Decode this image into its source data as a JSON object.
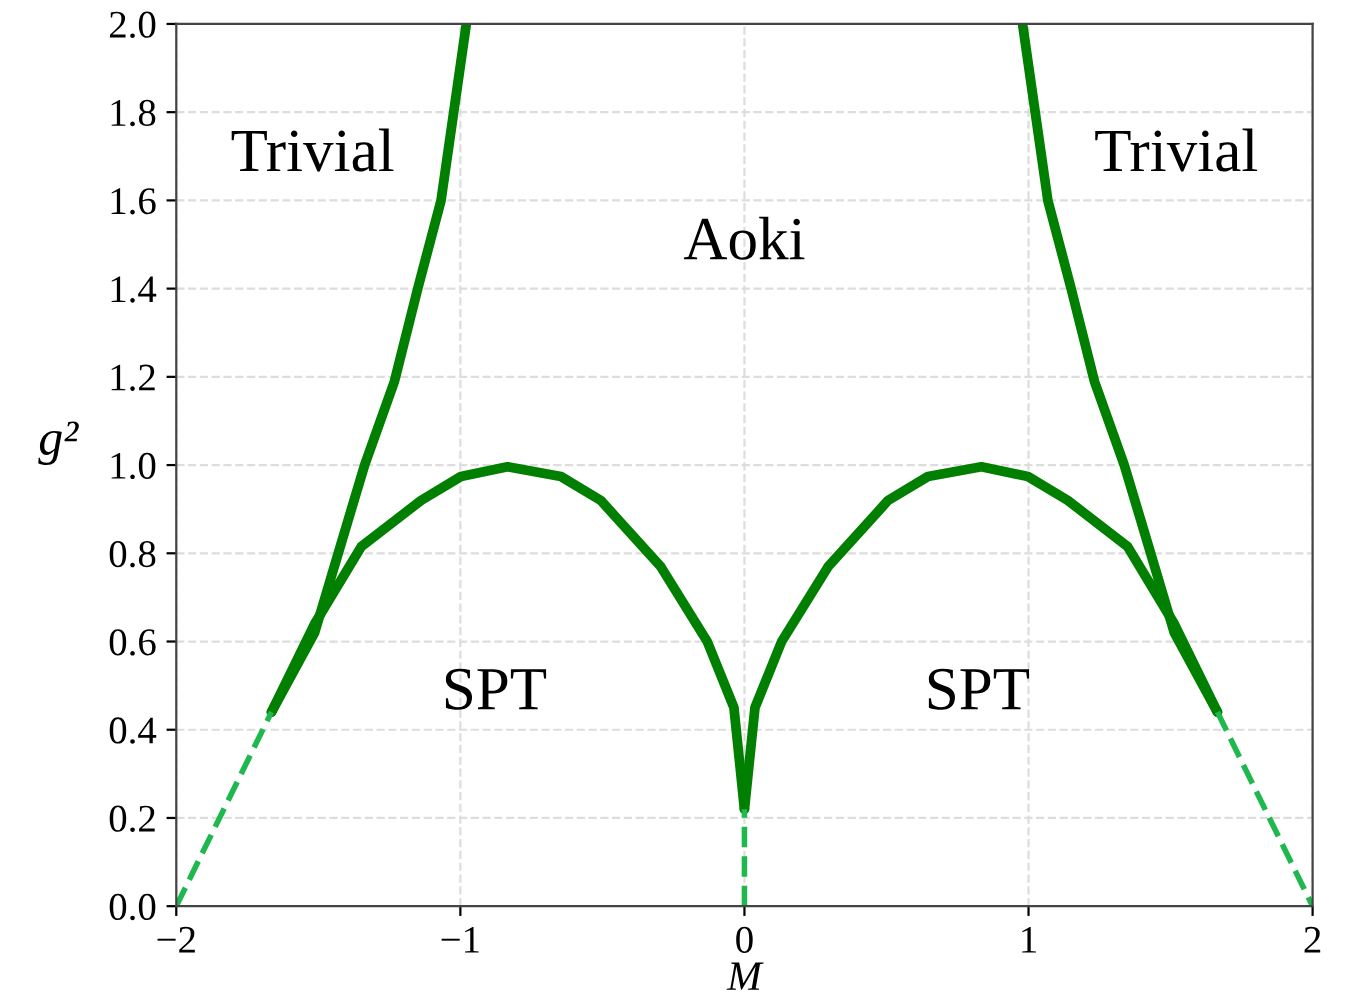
{
  "chart_data": {
    "type": "line",
    "xlabel": "M",
    "ylabel": "g²",
    "xlim": [
      -2,
      2
    ],
    "ylim": [
      0.0,
      2.0
    ],
    "xticks": [
      -2,
      -1,
      0,
      1,
      2
    ],
    "yticks": [
      {
        "value": 0,
        "label": "0.0"
      },
      0.2,
      0.4,
      0.6,
      0.8,
      {
        "value": 1,
        "label": "1.0"
      },
      1.2,
      1.4,
      1.6,
      1.8,
      {
        "value": 2,
        "label": "2.0"
      }
    ],
    "grid": true,
    "legend": false,
    "series": [
      {
        "color": "#007f00",
        "line_style": "solid",
        "x": [
          -1.665,
          -1.513,
          -1.43,
          -1.337,
          -1.232,
          -1.15,
          -1.068,
          -0.979
        ],
        "values": [
          0.44,
          0.62,
          0.8,
          1.0,
          1.19,
          1.4,
          1.6,
          2.0
        ]
      },
      {
        "color": "#007f00",
        "line_style": "solid",
        "x": [
          -1.665,
          -1.513,
          -1.349,
          -1.138,
          -0.998,
          -0.834,
          -0.646,
          -0.506,
          -0.295,
          -0.131,
          -0.037,
          0.0
        ],
        "values": [
          0.44,
          0.64,
          0.815,
          0.92,
          0.974,
          0.996,
          0.974,
          0.92,
          0.77,
          0.6,
          0.45,
          0.22
        ]
      },
      {
        "color": "#007f00",
        "line_style": "solid",
        "x": [
          0.0,
          0.037,
          0.131,
          0.295,
          0.506,
          0.646,
          0.834,
          0.998,
          1.138,
          1.349,
          1.513,
          1.665
        ],
        "values": [
          0.22,
          0.45,
          0.6,
          0.77,
          0.92,
          0.974,
          0.996,
          0.974,
          0.92,
          0.815,
          0.64,
          0.44
        ]
      },
      {
        "color": "#007f00",
        "line_style": "solid",
        "x": [
          0.979,
          1.068,
          1.15,
          1.232,
          1.337,
          1.43,
          1.513,
          1.665
        ],
        "values": [
          2.0,
          1.6,
          1.4,
          1.19,
          1.0,
          0.8,
          0.62,
          0.44
        ]
      },
      {
        "color": "#1fb84f",
        "line_style": "dashed",
        "x": [
          -2,
          -1.665
        ],
        "values": [
          0.0,
          0.44
        ]
      },
      {
        "color": "#1fb84f",
        "line_style": "dashed",
        "x": [
          0,
          0
        ],
        "values": [
          0.0,
          0.22
        ]
      },
      {
        "color": "#1fb84f",
        "line_style": "dashed",
        "x": [
          1.665,
          2
        ],
        "values": [
          0.44,
          0.0
        ]
      }
    ],
    "annotations": [
      "Trivial",
      "Aoki",
      "SPT",
      "Trivial",
      "SPT"
    ]
  }
}
